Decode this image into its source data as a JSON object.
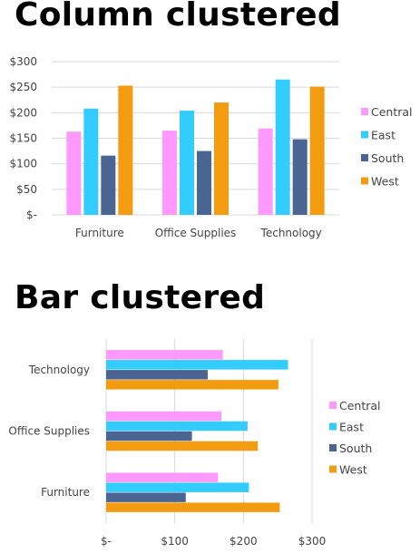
{
  "colors": {
    "Central": "#ff99ff",
    "East": "#33ccff",
    "South": "#4a6592",
    "West": "#f39c12",
    "grid": "#d9d9d9"
  },
  "chart_data": [
    {
      "type": "bar",
      "orientation": "vertical",
      "title": "Column clustered",
      "categories": [
        "Furniture",
        "Office Supplies",
        "Technology"
      ],
      "series": [
        {
          "name": "Central",
          "values": [
            163,
            165,
            169
          ]
        },
        {
          "name": "East",
          "values": [
            208,
            204,
            265
          ]
        },
        {
          "name": "South",
          "values": [
            116,
            125,
            148
          ]
        },
        {
          "name": "West",
          "values": [
            253,
            220,
            251
          ]
        }
      ],
      "ylim": [
        0,
        300
      ],
      "yticks": [
        0,
        50,
        100,
        150,
        200,
        250,
        300
      ],
      "ytick_labels": [
        "$-",
        "$50",
        "$100",
        "$150",
        "$200",
        "$250",
        "$300"
      ],
      "grid": true,
      "legend": "right"
    },
    {
      "type": "bar",
      "orientation": "horizontal",
      "title": "Bar clustered",
      "categories": [
        "Furniture",
        "Office Supplies",
        "Technology"
      ],
      "series": [
        {
          "name": "Central",
          "values": [
            163,
            168,
            170
          ]
        },
        {
          "name": "East",
          "values": [
            208,
            206,
            265
          ]
        },
        {
          "name": "South",
          "values": [
            116,
            125,
            148
          ]
        },
        {
          "name": "West",
          "values": [
            253,
            221,
            251
          ]
        }
      ],
      "xlim": [
        0,
        300
      ],
      "xticks": [
        0,
        100,
        200,
        300
      ],
      "xtick_labels": [
        "$-",
        "$100",
        "$200",
        "$300"
      ],
      "grid": true,
      "legend": "right"
    }
  ]
}
